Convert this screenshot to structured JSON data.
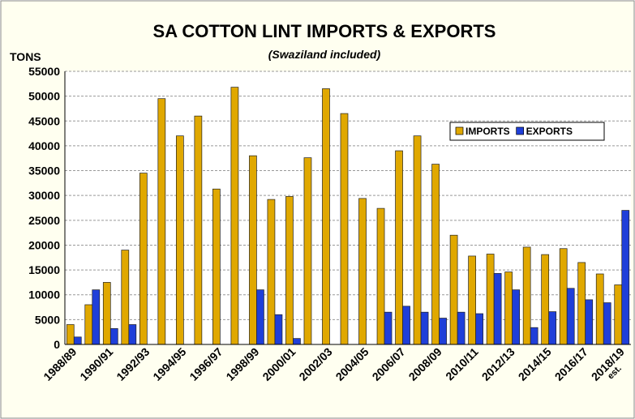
{
  "chart_data": {
    "type": "bar",
    "title": "SA COTTON LINT IMPORTS & EXPORTS",
    "subtitle": "(Swaziland included)",
    "y_label": "TONS",
    "x_label_note": "est.",
    "categories": [
      "1988/89",
      null,
      "1990/91",
      null,
      "1992/93",
      null,
      "1994/95",
      null,
      "1996/97",
      null,
      "1998/99",
      null,
      "2000/01",
      null,
      "2002/03",
      null,
      "2004/05",
      null,
      "2006/07",
      null,
      "2008/09",
      null,
      "2010/11",
      null,
      "2012/13",
      null,
      "2014/15",
      null,
      "2016/17",
      null,
      "2018/19"
    ],
    "series": [
      {
        "name": "IMPORTS",
        "color": "#E0A800",
        "values": [
          4000,
          8000,
          12500,
          19000,
          34500,
          49500,
          42000,
          46000,
          31300,
          51800,
          38000,
          29200,
          29800,
          37600,
          51500,
          46500,
          29400,
          27400,
          39000,
          42000,
          36300,
          22000,
          17800,
          18200,
          14600,
          19600,
          18100,
          19300,
          16500,
          14200,
          12000
        ]
      },
      {
        "name": "EXPORTS",
        "color": "#1F3FD9",
        "values": [
          1500,
          11000,
          3200,
          4000,
          null,
          null,
          null,
          null,
          null,
          null,
          11000,
          6000,
          1200,
          null,
          null,
          null,
          null,
          6500,
          7700,
          6500,
          5300,
          6500,
          6200,
          14300,
          11000,
          3400,
          6600,
          11300,
          9000,
          8400,
          27000
        ]
      }
    ],
    "ylim": [
      0,
      55000
    ],
    "yticks": [
      0,
      5000,
      10000,
      15000,
      20000,
      25000,
      30000,
      35000,
      40000,
      45000,
      50000,
      55000
    ],
    "grid": true
  }
}
